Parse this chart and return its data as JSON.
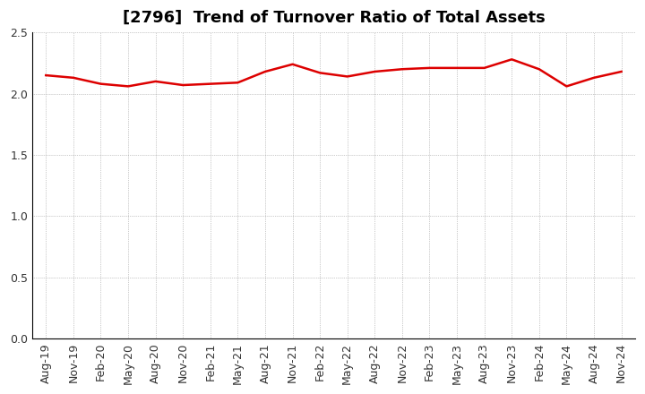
{
  "title": "[2796]  Trend of Turnover Ratio of Total Assets",
  "x_labels": [
    "Aug-19",
    "Nov-19",
    "Feb-20",
    "May-20",
    "Aug-20",
    "Nov-20",
    "Feb-21",
    "May-21",
    "Aug-21",
    "Nov-21",
    "Feb-22",
    "May-22",
    "Aug-22",
    "Nov-22",
    "Feb-23",
    "May-23",
    "Aug-23",
    "Nov-23",
    "Feb-24",
    "May-24",
    "Aug-24",
    "Nov-24"
  ],
  "values": [
    2.15,
    2.13,
    2.08,
    2.06,
    2.1,
    2.07,
    2.08,
    2.09,
    2.18,
    2.24,
    2.17,
    2.14,
    2.18,
    2.2,
    2.21,
    2.21,
    2.21,
    2.28,
    2.2,
    2.06,
    2.13,
    2.18
  ],
  "line_color": "#dd0000",
  "background_color": "#ffffff",
  "grid_color": "#999999",
  "ylim": [
    0.0,
    2.5
  ],
  "yticks": [
    0.0,
    0.5,
    1.0,
    1.5,
    2.0,
    2.5
  ],
  "title_fontsize": 13,
  "tick_fontsize": 9,
  "line_width": 1.8,
  "figsize": [
    7.2,
    4.4
  ],
  "dpi": 100
}
